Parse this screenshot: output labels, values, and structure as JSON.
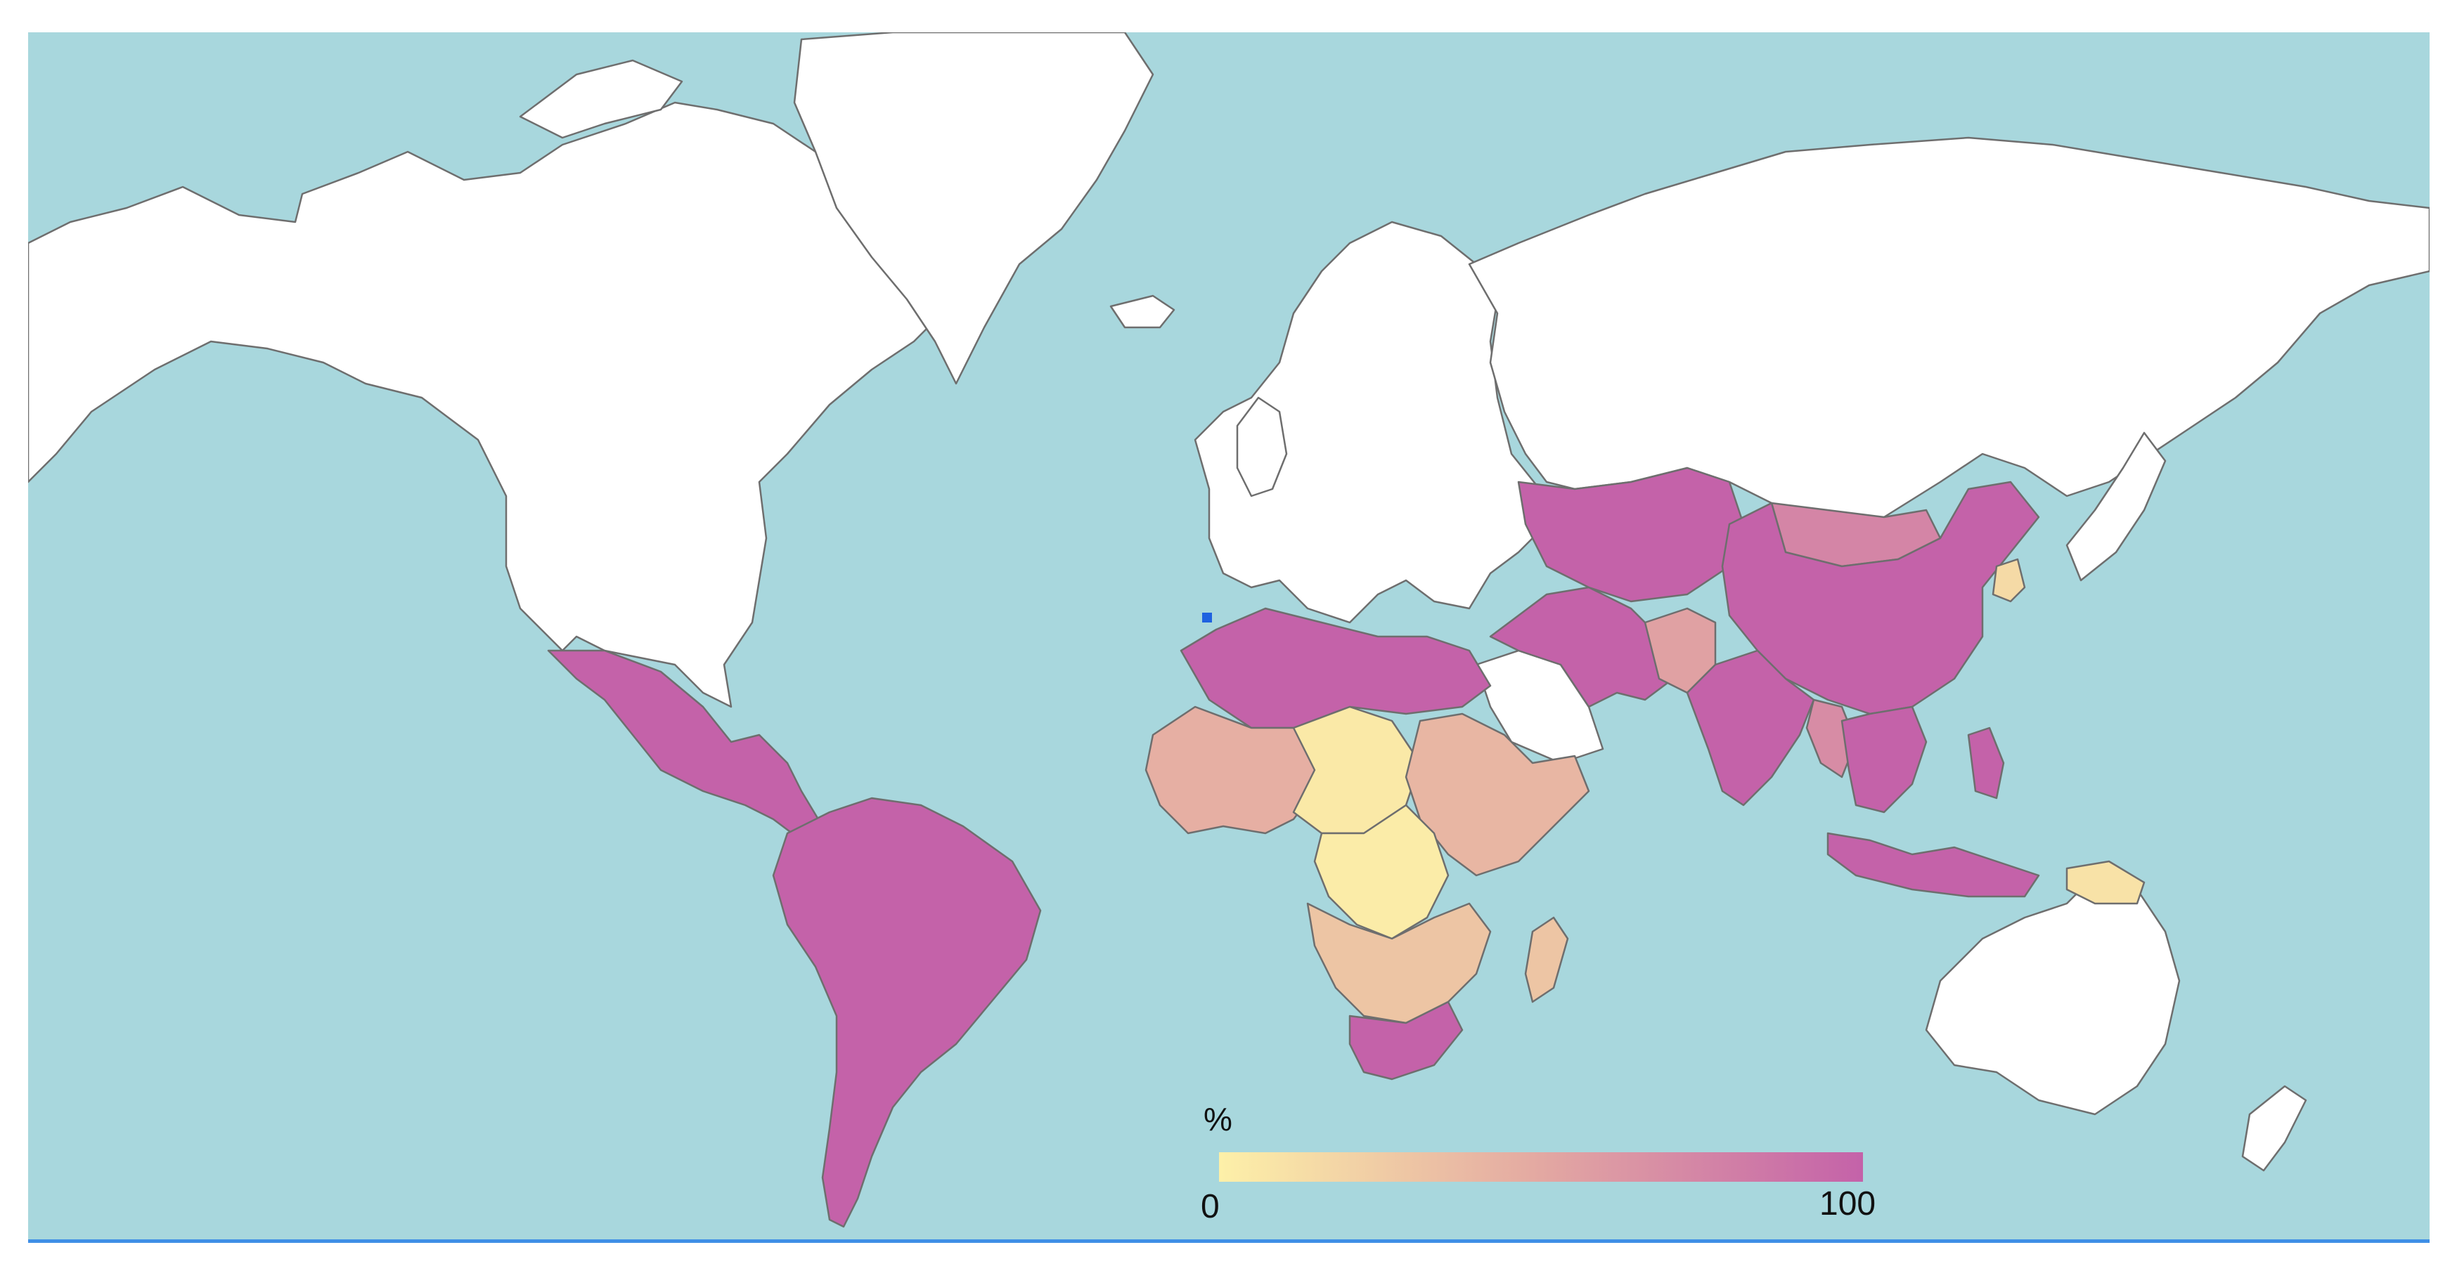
{
  "colors": {
    "ocean": "#a8d7dd",
    "no_data": "#ffffff",
    "border": "#6e6e6e",
    "scale_low": "#fdf0a8",
    "scale_mid": "#e3a8a2",
    "scale_high": "#c462a9",
    "marker": "#1f62e0",
    "rule": "#3f8fe6"
  },
  "legend": {
    "title": "%",
    "min_label": "0",
    "max_label": "100",
    "min": 0,
    "max": 100
  },
  "regions": [
    {
      "id": "north-america",
      "value": null
    },
    {
      "id": "greenland",
      "value": null
    },
    {
      "id": "europe",
      "value": null
    },
    {
      "id": "russia",
      "value": null
    },
    {
      "id": "australia",
      "value": null
    },
    {
      "id": "saudi-arabia",
      "value": null
    },
    {
      "id": "mexico-central-america",
      "value": 100
    },
    {
      "id": "south-america",
      "value": 100
    },
    {
      "id": "north-africa",
      "value": 100
    },
    {
      "id": "west-africa",
      "value": 45
    },
    {
      "id": "sahel-central-north",
      "value": 5
    },
    {
      "id": "central-africa",
      "value": 3
    },
    {
      "id": "east-africa",
      "value": 40
    },
    {
      "id": "southern-africa",
      "value": 30
    },
    {
      "id": "south-africa",
      "value": 100
    },
    {
      "id": "madagascar",
      "value": 30
    },
    {
      "id": "middle-east-iran",
      "value": 100
    },
    {
      "id": "afghanistan",
      "value": 55
    },
    {
      "id": "central-asia",
      "value": 100
    },
    {
      "id": "mongolia",
      "value": 75
    },
    {
      "id": "china",
      "value": 100
    },
    {
      "id": "south-asia",
      "value": 100
    },
    {
      "id": "myanmar",
      "value": 70
    },
    {
      "id": "southeast-asia",
      "value": 100
    },
    {
      "id": "indonesia",
      "value": 100
    },
    {
      "id": "north-korea",
      "value": 15
    },
    {
      "id": "papua-new-guinea",
      "value": 10
    },
    {
      "id": "japan",
      "value": null
    },
    {
      "id": "new-zealand",
      "value": null
    }
  ]
}
